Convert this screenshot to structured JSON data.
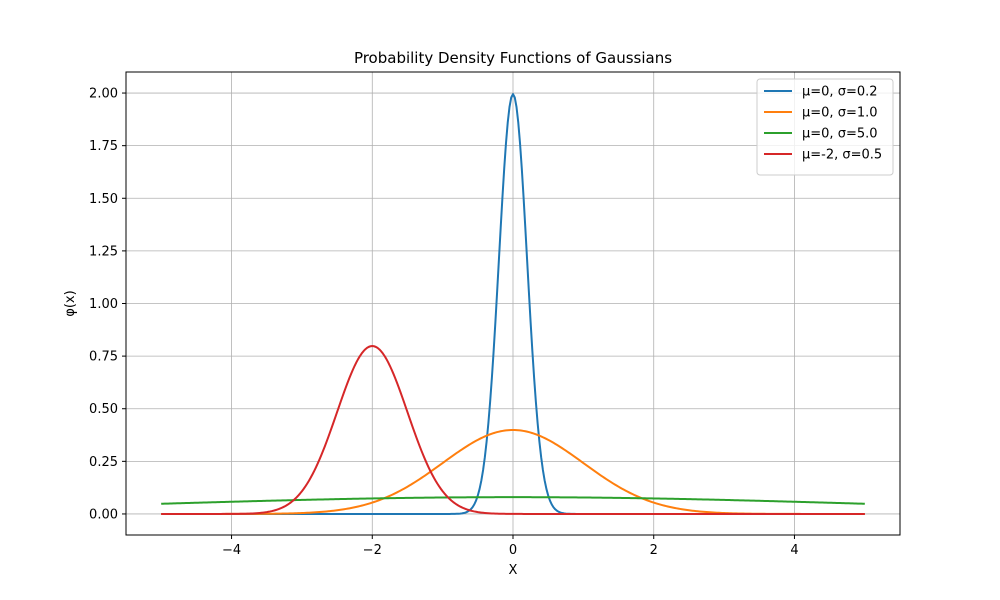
{
  "chart_data": {
    "type": "line",
    "title": "Probability Density Functions of Gaussians",
    "xlabel": "X",
    "ylabel": "φ(x)",
    "xlim": [
      -5.5,
      5.5
    ],
    "ylim": [
      -0.1,
      2.1
    ],
    "xticks": [
      -4,
      -2,
      0,
      2,
      4
    ],
    "xtick_labels": [
      "−4",
      "−2",
      "0",
      "2",
      "4"
    ],
    "yticks": [
      0.0,
      0.25,
      0.5,
      0.75,
      1.0,
      1.25,
      1.5,
      1.75,
      2.0
    ],
    "ytick_labels": [
      "0.00",
      "0.25",
      "0.50",
      "0.75",
      "1.00",
      "1.25",
      "1.50",
      "1.75",
      "2.00"
    ],
    "grid": true,
    "legend_position": "top-right",
    "x_range": [
      -5,
      5
    ],
    "series": [
      {
        "name": "μ=0, σ=0.2",
        "mu": 0,
        "sigma": 0.2,
        "color": "#1f77b4"
      },
      {
        "name": "μ=0, σ=1.0",
        "mu": 0,
        "sigma": 1.0,
        "color": "#ff7f0e"
      },
      {
        "name": "μ=0, σ=5.0",
        "mu": 0,
        "sigma": 5.0,
        "color": "#2ca02c"
      },
      {
        "name": "μ=-2, σ=0.5",
        "mu": -2,
        "sigma": 0.5,
        "color": "#d62728"
      }
    ]
  }
}
